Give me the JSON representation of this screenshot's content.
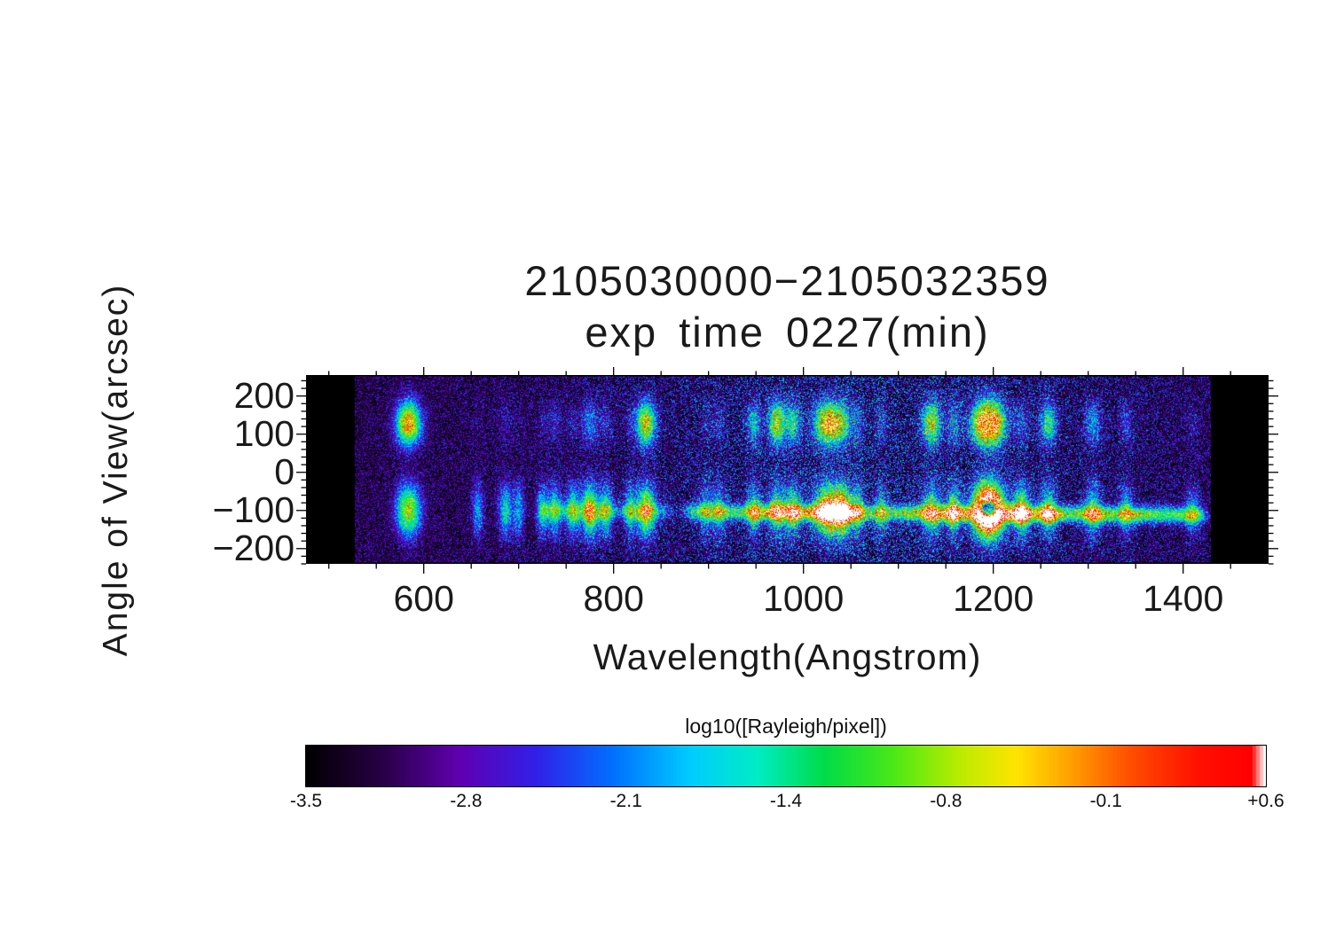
{
  "title": {
    "line1": "2105030000−2105032359",
    "line2": "exp time 0227(min)"
  },
  "axes": {
    "xlabel": "Wavelength(Angstrom)",
    "ylabel": "Angle of View(arcsec)"
  },
  "colorbar": {
    "label": "log10([Rayleigh/pixel])",
    "tick_labels": [
      "-3.5",
      "-2.8",
      "-2.1",
      "-1.4",
      "-0.8",
      "-0.1",
      "+0.6"
    ]
  },
  "chart_data": {
    "type": "heatmap",
    "title": "2105030000−2105032359",
    "subtitle": "exp time 0227(min)",
    "xlabel": "Wavelength(Angstrom)",
    "ylabel": "Angle of View(arcsec)",
    "x_range": [
      476,
      1490
    ],
    "y_range": [
      -240,
      255
    ],
    "data_x_range": [
      527,
      1429
    ],
    "x_ticks": [
      600,
      800,
      1000,
      1200,
      1400
    ],
    "x_minor_step": 50,
    "y_ticks": [
      200,
      100,
      0,
      -100,
      -200
    ],
    "y_minor_step": 20,
    "value_range": [
      -3.5,
      0.6
    ],
    "colorbar": {
      "label": "log10([Rayleigh/pixel])",
      "tick_labels": [
        "-3.5",
        "-2.8",
        "-2.1",
        "-1.4",
        "-0.8",
        "-0.1",
        "+0.6"
      ],
      "orientation": "horizontal"
    },
    "colormap_stops": [
      [
        0.0,
        [
          0,
          0,
          0
        ]
      ],
      [
        0.08,
        [
          40,
          0,
          70
        ]
      ],
      [
        0.16,
        [
          96,
          0,
          176
        ]
      ],
      [
        0.24,
        [
          48,
          32,
          232
        ]
      ],
      [
        0.32,
        [
          0,
          112,
          255
        ]
      ],
      [
        0.4,
        [
          0,
          204,
          255
        ]
      ],
      [
        0.47,
        [
          0,
          236,
          196
        ]
      ],
      [
        0.54,
        [
          0,
          220,
          72
        ]
      ],
      [
        0.61,
        [
          72,
          232,
          24
        ]
      ],
      [
        0.68,
        [
          184,
          236,
          0
        ]
      ],
      [
        0.74,
        [
          255,
          228,
          0
        ]
      ],
      [
        0.8,
        [
          255,
          156,
          0
        ]
      ],
      [
        0.86,
        [
          255,
          76,
          0
        ]
      ],
      [
        0.93,
        [
          255,
          16,
          0
        ]
      ],
      [
        0.985,
        [
          255,
          0,
          0
        ]
      ],
      [
        1.0,
        [
          255,
          255,
          255
        ]
      ]
    ],
    "vertical_profile": {
      "top_center": 128,
      "top_sigma": 40,
      "bottom_center": -100,
      "bottom_sigma": 48
    },
    "emission_lines": [
      {
        "wavelength": 584,
        "width": 9,
        "top": 1.0,
        "bottom": 0.8
      },
      {
        "wavelength": 657,
        "width": 4,
        "top": 0.05,
        "bottom": 0.4
      },
      {
        "wavelength": 686,
        "width": 5,
        "top": 0.1,
        "bottom": 0.5
      },
      {
        "wavelength": 700,
        "width": 4,
        "top": 0.05,
        "bottom": 0.4
      },
      {
        "wavelength": 725,
        "width": 4,
        "top": 0.1,
        "bottom": 0.45
      },
      {
        "wavelength": 738,
        "width": 5,
        "top": 0.15,
        "bottom": 0.5
      },
      {
        "wavelength": 757,
        "width": 5,
        "top": 0.1,
        "bottom": 0.55
      },
      {
        "wavelength": 775,
        "width": 6,
        "top": 0.3,
        "bottom": 0.85
      },
      {
        "wavelength": 792,
        "width": 5,
        "top": 0.15,
        "bottom": 0.55
      },
      {
        "wavelength": 817,
        "width": 4,
        "top": 0.1,
        "bottom": 0.45
      },
      {
        "wavelength": 834,
        "width": 7,
        "top": 0.85,
        "bottom": 0.8
      },
      {
        "wavelength": 897,
        "width": 5,
        "top": 0.1,
        "bottom": 0.35
      },
      {
        "wavelength": 911,
        "width": 5,
        "top": 0.15,
        "bottom": 0.4
      },
      {
        "wavelength": 948,
        "width": 5,
        "top": 0.45,
        "bottom": 0.5
      },
      {
        "wavelength": 972,
        "width": 6,
        "top": 0.8,
        "bottom": 0.55
      },
      {
        "wavelength": 989,
        "width": 6,
        "top": 0.5,
        "bottom": 0.6
      },
      {
        "wavelength": 1026,
        "width": 10,
        "top": 0.95,
        "bottom": 1.0
      },
      {
        "wavelength": 1042,
        "width": 6,
        "top": 0.4,
        "bottom": 0.8
      },
      {
        "wavelength": 1057,
        "width": 5,
        "top": 0.25,
        "bottom": 0.5
      },
      {
        "wavelength": 1082,
        "width": 5,
        "top": 0.2,
        "bottom": 0.4
      },
      {
        "wavelength": 1135,
        "width": 7,
        "top": 0.75,
        "bottom": 0.6
      },
      {
        "wavelength": 1158,
        "width": 5,
        "top": 0.3,
        "bottom": 0.6
      },
      {
        "wavelength": 1195,
        "width": 11,
        "top": 1.5,
        "bottom": 1.85,
        "saturated": true
      },
      {
        "wavelength": 1230,
        "width": 6,
        "top": 0.2,
        "bottom": 0.7
      },
      {
        "wavelength": 1258,
        "width": 6,
        "top": 0.55,
        "bottom": 0.55
      },
      {
        "wavelength": 1305,
        "width": 6,
        "top": 0.35,
        "bottom": 0.5
      },
      {
        "wavelength": 1340,
        "width": 5,
        "top": 0.2,
        "bottom": 0.4
      },
      {
        "wavelength": 1410,
        "width": 5,
        "top": 0.1,
        "bottom": 0.3
      }
    ],
    "airglow_band": {
      "y_center": -106,
      "y_sigma": 15,
      "slope": -0.015,
      "segments": [
        {
          "from": 715,
          "to": 868,
          "amp": 0.3
        },
        {
          "from": 868,
          "to": 1429,
          "amp": 0.5
        }
      ],
      "hotspots": [
        {
          "wavelength": 960,
          "amp": 0.2,
          "sigma": 20
        },
        {
          "wavelength": 1012,
          "amp": 0.3,
          "sigma": 25
        },
        {
          "wavelength": 1042,
          "amp": 0.35,
          "sigma": 14
        },
        {
          "wavelength": 1120,
          "amp": 0.22,
          "sigma": 15
        },
        {
          "wavelength": 1160,
          "amp": 0.4,
          "sigma": 12
        },
        {
          "wavelength": 1228,
          "amp": 0.5,
          "sigma": 14
        },
        {
          "wavelength": 1262,
          "amp": 0.35,
          "sigma": 10
        },
        {
          "wavelength": 1310,
          "amp": 0.25,
          "sigma": 18
        },
        {
          "wavelength": 1356,
          "amp": 0.2,
          "sigma": 12
        },
        {
          "wavelength": 1405,
          "amp": 0.15,
          "sigma": 20
        }
      ]
    },
    "noise": {
      "base": -3.5,
      "speckle": 1.55
    }
  }
}
